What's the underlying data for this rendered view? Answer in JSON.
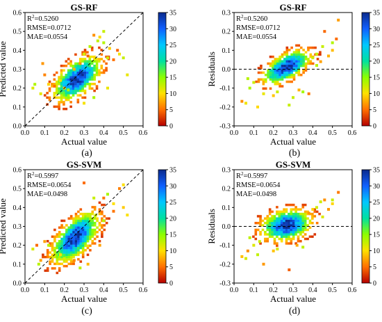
{
  "figure": {
    "colorbar": {
      "ticks": [
        0,
        5,
        10,
        15,
        20,
        25,
        30,
        35
      ],
      "range": [
        0,
        35
      ],
      "colormap": "jet_r",
      "colors": [
        "#b50000",
        "#ff7000",
        "#ffe000",
        "#8cff00",
        "#00e0a0",
        "#00c8ff",
        "#1060ff",
        "#0a2a8c"
      ]
    }
  },
  "chart_data": [
    {
      "type": "heatmap",
      "subplot_label": "(a)",
      "title": "GS-RF",
      "xlabel": "Actual value",
      "ylabel": "Predicted value",
      "xlim": [
        0.0,
        0.6
      ],
      "ylim": [
        0.0,
        0.6
      ],
      "xticks": [
        "0.0",
        "0.1",
        "0.2",
        "0.3",
        "0.4",
        "0.5",
        "0.6"
      ],
      "yticks": [
        "0.0",
        "0.1",
        "0.2",
        "0.3",
        "0.4",
        "0.5",
        "0.6"
      ],
      "reference_line": "y = x",
      "stats": [
        {
          "prefix": "R",
          "sup": "2",
          "value": "=0.5260"
        },
        {
          "prefix": "RMSE",
          "sup": "",
          "value": "=0.0712"
        },
        {
          "prefix": "MAE",
          "sup": "",
          "value": "=0.0554"
        }
      ],
      "density": {
        "center_x": 0.26,
        "center_y": 0.245,
        "spread_x": 0.075,
        "spread_y": 0.06,
        "slope": 0.55,
        "peak": 35
      },
      "points": [
        [
          0.04,
          0.2
        ],
        [
          0.05,
          0.22
        ],
        [
          0.08,
          0.17
        ],
        [
          0.09,
          0.33
        ],
        [
          0.12,
          0.22
        ],
        [
          0.15,
          0.21
        ],
        [
          0.18,
          0.24
        ],
        [
          0.2,
          0.2
        ],
        [
          0.22,
          0.19
        ],
        [
          0.25,
          0.3
        ],
        [
          0.28,
          0.33
        ],
        [
          0.3,
          0.38
        ],
        [
          0.33,
          0.42
        ],
        [
          0.35,
          0.48
        ],
        [
          0.35,
          0.15
        ],
        [
          0.38,
          0.47
        ],
        [
          0.4,
          0.5
        ],
        [
          0.4,
          0.44
        ],
        [
          0.42,
          0.36
        ],
        [
          0.43,
          0.41
        ],
        [
          0.45,
          0.35
        ],
        [
          0.47,
          0.4
        ],
        [
          0.48,
          0.38
        ],
        [
          0.5,
          0.36
        ],
        [
          0.52,
          0.27
        ],
        [
          0.42,
          0.2
        ],
        [
          0.3,
          0.12
        ],
        [
          0.1,
          0.27
        ],
        [
          0.32,
          0.37
        ],
        [
          0.37,
          0.45
        ]
      ]
    },
    {
      "type": "heatmap",
      "subplot_label": "(b)",
      "title": "GS-RF",
      "xlabel": "Actual value",
      "ylabel": "Residuals",
      "xlim": [
        0.0,
        0.6
      ],
      "ylim": [
        -0.3,
        0.3
      ],
      "xticks": [
        "0.0",
        "0.1",
        "0.2",
        "0.3",
        "0.4",
        "0.5",
        "0.6"
      ],
      "yticks": [
        "-0.3",
        "-0.2",
        "-0.1",
        "0.0",
        "0.1",
        "0.2",
        "0.3"
      ],
      "reference_line": "y = 0",
      "stats": [
        {
          "prefix": "R",
          "sup": "2",
          "value": "=0.5260"
        },
        {
          "prefix": "RMSE",
          "sup": "",
          "value": "=0.0712"
        },
        {
          "prefix": "MAE",
          "sup": "",
          "value": "=0.0554"
        }
      ],
      "density": {
        "center_x": 0.26,
        "center_y": 0.005,
        "spread_x": 0.075,
        "spread_y": 0.045,
        "slope": 0.45,
        "peak": 35
      },
      "points": [
        [
          0.04,
          -0.17
        ],
        [
          0.06,
          -0.18
        ],
        [
          0.07,
          -0.05
        ],
        [
          0.08,
          -0.1
        ],
        [
          0.1,
          -0.07
        ],
        [
          0.12,
          -0.2
        ],
        [
          0.15,
          -0.13
        ],
        [
          0.2,
          -0.14
        ],
        [
          0.22,
          -0.12
        ],
        [
          0.3,
          -0.15
        ],
        [
          0.35,
          -0.12
        ],
        [
          0.38,
          -0.13
        ],
        [
          0.4,
          0.06
        ],
        [
          0.42,
          0.08
        ],
        [
          0.45,
          0.12
        ],
        [
          0.46,
          0.2
        ],
        [
          0.48,
          0.07
        ],
        [
          0.5,
          0.1
        ],
        [
          0.5,
          0.14
        ],
        [
          0.52,
          0.16
        ],
        [
          0.53,
          0.26
        ],
        [
          0.42,
          0.02
        ],
        [
          0.44,
          0.04
        ],
        [
          0.28,
          -0.19
        ],
        [
          0.33,
          -0.11
        ]
      ]
    },
    {
      "type": "heatmap",
      "subplot_label": "(c)",
      "title": "GS-SVM",
      "xlabel": "Actual value",
      "ylabel": "Predicted value",
      "xlim": [
        0.0,
        0.6
      ],
      "ylim": [
        0.0,
        0.6
      ],
      "xticks": [
        "0.0",
        "0.1",
        "0.2",
        "0.3",
        "0.4",
        "0.5",
        "0.6"
      ],
      "yticks": [
        "0.0",
        "0.1",
        "0.2",
        "0.3",
        "0.4",
        "0.5",
        "0.6"
      ],
      "reference_line": "y = x",
      "stats": [
        {
          "prefix": "R",
          "sup": "2",
          "value": "=0.5997"
        },
        {
          "prefix": "RMSE",
          "sup": "",
          "value": "=0.0654"
        },
        {
          "prefix": "MAE",
          "sup": "",
          "value": "=0.0498"
        }
      ],
      "density": {
        "center_x": 0.25,
        "center_y": 0.235,
        "spread_x": 0.075,
        "spread_y": 0.065,
        "slope": 0.7,
        "peak": 35
      },
      "points": [
        [
          0.04,
          0.18
        ],
        [
          0.06,
          0.2
        ],
        [
          0.07,
          0.1
        ],
        [
          0.08,
          0.12
        ],
        [
          0.1,
          0.22
        ],
        [
          0.12,
          0.2
        ],
        [
          0.18,
          0.15
        ],
        [
          0.2,
          0.13
        ],
        [
          0.25,
          0.12
        ],
        [
          0.3,
          0.53
        ],
        [
          0.35,
          0.45
        ],
        [
          0.38,
          0.2
        ],
        [
          0.4,
          0.45
        ],
        [
          0.42,
          0.47
        ],
        [
          0.45,
          0.42
        ],
        [
          0.48,
          0.5
        ],
        [
          0.5,
          0.52
        ],
        [
          0.5,
          0.4
        ],
        [
          0.52,
          0.36
        ],
        [
          0.45,
          0.38
        ],
        [
          0.32,
          0.1
        ],
        [
          0.28,
          0.08
        ],
        [
          0.4,
          0.33
        ],
        [
          0.36,
          0.36
        ]
      ]
    },
    {
      "type": "heatmap",
      "subplot_label": "(d)",
      "title": "GS-SVM",
      "xlabel": "Actual value",
      "ylabel": "Residuals",
      "xlim": [
        0.0,
        0.6
      ],
      "ylim": [
        -0.3,
        0.3
      ],
      "xticks": [
        "0.0",
        "0.1",
        "0.2",
        "0.3",
        "0.4",
        "0.5",
        "0.6"
      ],
      "yticks": [
        "-0.3",
        "-0.2",
        "-0.1",
        "0.0",
        "0.1",
        "0.2",
        "0.3"
      ],
      "reference_line": "y = 0",
      "stats": [
        {
          "prefix": "R",
          "sup": "2",
          "value": "=0.5997"
        },
        {
          "prefix": "RMSE",
          "sup": "",
          "value": "=0.0654"
        },
        {
          "prefix": "MAE",
          "sup": "",
          "value": "=0.0498"
        }
      ],
      "density": {
        "center_x": 0.26,
        "center_y": 0.0,
        "spread_x": 0.08,
        "spread_y": 0.05,
        "slope": 0.15,
        "peak": 35
      },
      "points": [
        [
          0.04,
          -0.16
        ],
        [
          0.06,
          -0.17
        ],
        [
          0.07,
          -0.13
        ],
        [
          0.08,
          -0.06
        ],
        [
          0.1,
          -0.1
        ],
        [
          0.12,
          -0.15
        ],
        [
          0.15,
          -0.2
        ],
        [
          0.2,
          -0.13
        ],
        [
          0.22,
          -0.12
        ],
        [
          0.28,
          -0.23
        ],
        [
          0.32,
          -0.1
        ],
        [
          0.38,
          0.07
        ],
        [
          0.4,
          0.09
        ],
        [
          0.42,
          0.1
        ],
        [
          0.44,
          0.13
        ],
        [
          0.46,
          0.14
        ],
        [
          0.48,
          0.09
        ],
        [
          0.5,
          0.14
        ],
        [
          0.5,
          0.12
        ],
        [
          0.53,
          0.18
        ],
        [
          0.45,
          0.05
        ],
        [
          0.35,
          -0.11
        ],
        [
          0.13,
          -0.08
        ]
      ]
    }
  ]
}
